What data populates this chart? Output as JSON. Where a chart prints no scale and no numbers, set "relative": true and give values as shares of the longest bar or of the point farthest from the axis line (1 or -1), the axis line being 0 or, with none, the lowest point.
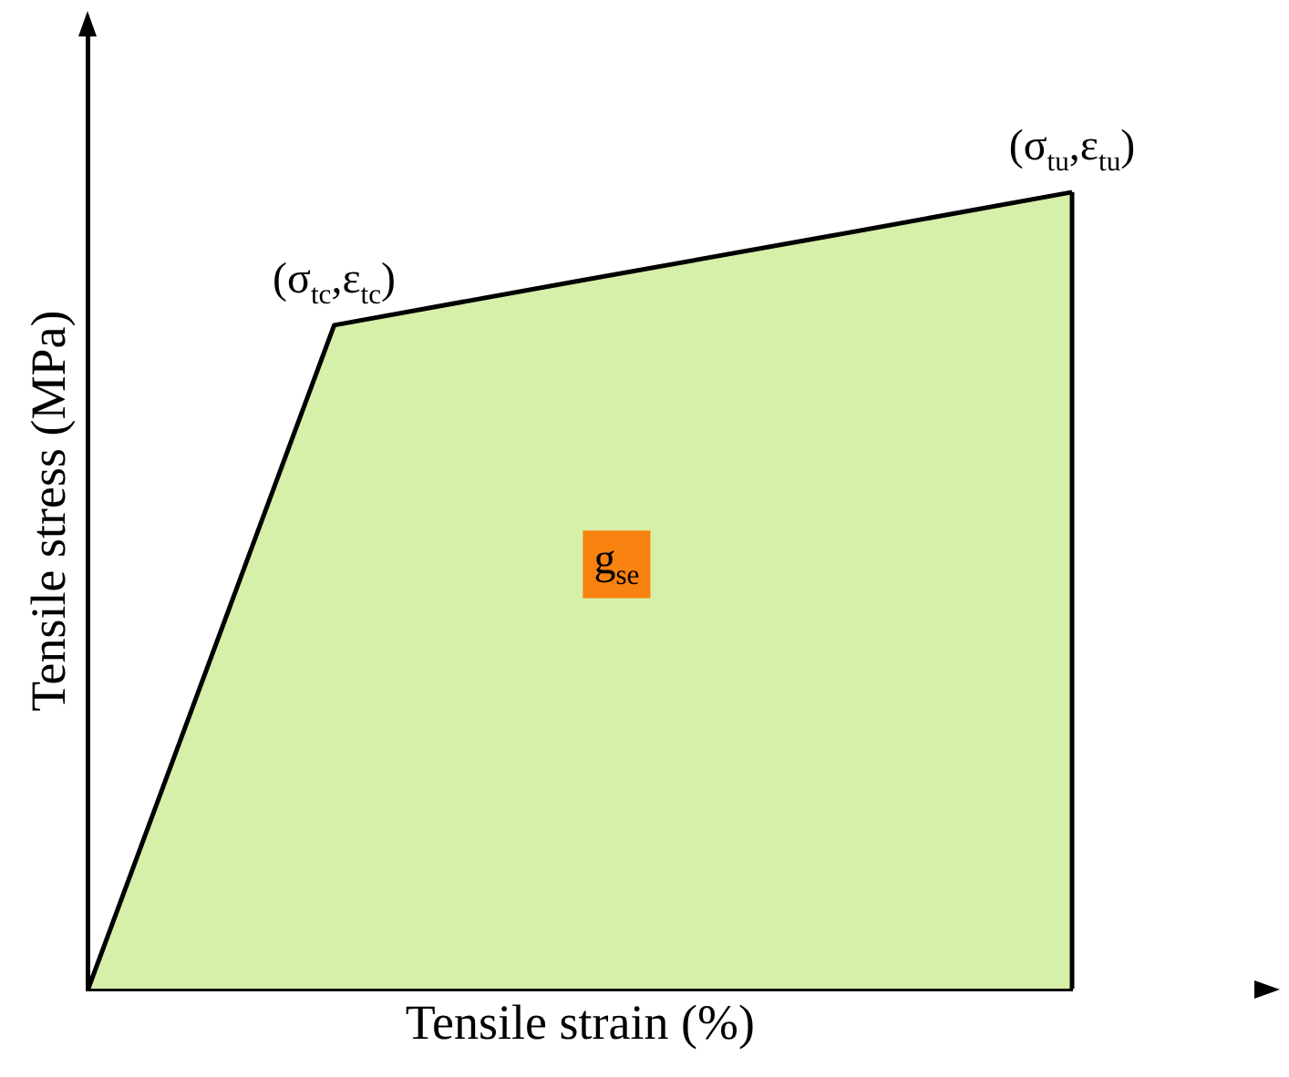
{
  "chart_data": {
    "type": "area",
    "relative": true,
    "xlabel": "Tensile strain (%)",
    "ylabel": "Tensile stress (MPa)",
    "categories": [
      null,
      null,
      null,
      null,
      null
    ],
    "series": [
      {
        "color": "#d6efa9",
        "values": [
          0,
          0.833,
          0.889,
          0.944,
          1
        ]
      }
    ],
    "annotations": [
      "(σ$_{tc}$,ε$_{tc}$)",
      "(σ$_{tu}$,ε$_{tu}$)",
      "g$_{se}$"
    ],
    "grid": false,
    "legend": false
  }
}
